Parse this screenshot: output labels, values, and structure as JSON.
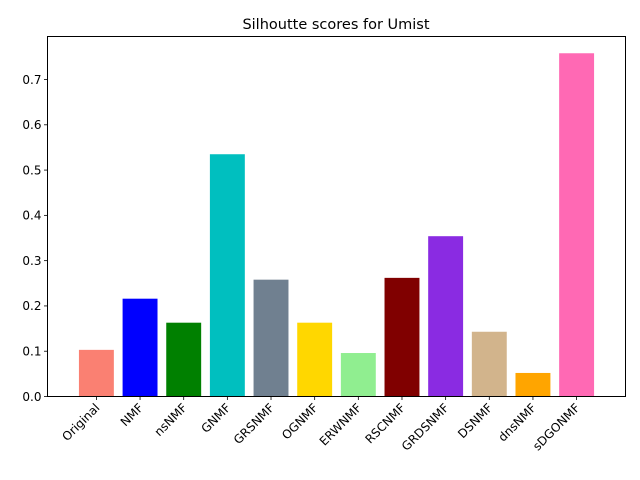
{
  "chart_data": {
    "type": "bar",
    "title": "Silhoutte scores for Umist",
    "xlabel": "",
    "ylabel": "",
    "ylim": [
      0,
      0.795
    ],
    "yticks": [
      0.0,
      0.1,
      0.2,
      0.3,
      0.4,
      0.5,
      0.6,
      0.7
    ],
    "ytick_labels": [
      "0.0",
      "0.1",
      "0.2",
      "0.3",
      "0.4",
      "0.5",
      "0.6",
      "0.7"
    ],
    "categories": [
      "Original",
      "NMF",
      "nsNMF",
      "GNMF",
      "GRSNMF",
      "OGNMF",
      "ERWNMF",
      "RSCNMF",
      "GRDSNMF",
      "DSNMF",
      "dnsNMF",
      "sDGONMF"
    ],
    "values": [
      0.103,
      0.216,
      0.163,
      0.535,
      0.258,
      0.163,
      0.096,
      0.262,
      0.354,
      0.143,
      0.052,
      0.758
    ],
    "colors": [
      "#fa8072",
      "#0000ff",
      "#008000",
      "#00bfbf",
      "#708090",
      "#ffd700",
      "#90ee90",
      "#800000",
      "#8a2be2",
      "#d2b48c",
      "#ffa500",
      "#ff69b4"
    ],
    "grid": false,
    "legend": "none"
  }
}
